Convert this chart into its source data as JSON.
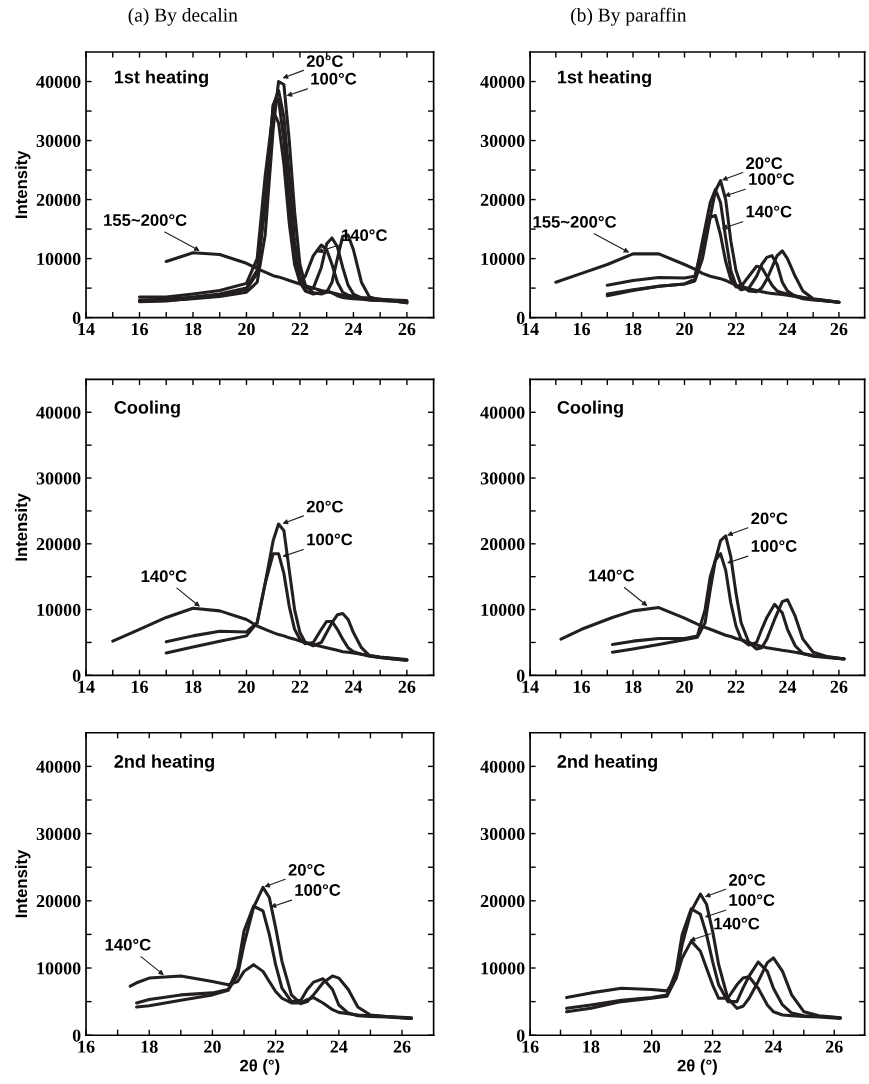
{
  "chart_data": [
    {
      "type": "line",
      "title": "(a) By decalin",
      "ylabel": "Intensity",
      "x": [
        16,
        17,
        18,
        19,
        20,
        20.4,
        20.7,
        21,
        21.2,
        21.4,
        21.6,
        21.8,
        22,
        22.2,
        22.5,
        22.8,
        23,
        23.2,
        23.4,
        23.6,
        23.8,
        24,
        24.3,
        24.6,
        25,
        25.5,
        26
      ],
      "series": [
        {
          "color": "#231f20",
          "values": [
            2800,
            2900,
            3200,
            3600,
            4300,
            6000,
            14000,
            32000,
            40000,
            39500,
            30000,
            18000,
            9000,
            5500,
            4200,
            4000,
            4300,
            6000,
            10000,
            13800,
            14000,
            11500,
            6000,
            3500,
            3000,
            2800,
            2500
          ]
        },
        {
          "color": "#231f20",
          "values": [
            3000,
            3100,
            3500,
            4000,
            5000,
            8000,
            20000,
            36000,
            38500,
            34000,
            24000,
            13000,
            7000,
            5000,
            5000,
            8500,
            12500,
            13500,
            12000,
            8500,
            5500,
            4000,
            3300,
            3000,
            2900,
            2800,
            2700
          ]
        },
        {
          "color": "#231f20",
          "values": [
            2700,
            2800,
            3300,
            3800,
            4800,
            7500,
            19000,
            36000,
            37000,
            30000,
            19000,
            10000,
            6000,
            4500,
            4000,
            4300,
            4500,
            4200,
            3700,
            3400,
            3300,
            3200,
            3100,
            3000,
            2900,
            2800,
            2500
          ]
        },
        {
          "color": "#231f20",
          "values": [
            3500,
            3500,
            4000,
            4600,
            5800,
            10000,
            24000,
            35000,
            33000,
            26000,
            16000,
            9000,
            6000,
            7000,
            10500,
            12300,
            11500,
            9000,
            6000,
            4300,
            3800,
            3500,
            3300,
            3200,
            3100,
            3000,
            2900
          ]
        },
        {
          "color": "#231f20",
          "values": [
            null,
            9500,
            11000,
            10700,
            9200,
            8300,
            7700,
            7100,
            6900,
            6600,
            6300,
            6000,
            5700,
            5400,
            5000,
            4600,
            4400,
            4200,
            4000,
            3800,
            3700,
            3600,
            3400,
            3300,
            3100,
            2900,
            2700
          ]
        }
      ],
      "xlim": [
        14,
        27
      ],
      "ylim": [
        0,
        45000
      ],
      "xticks": [
        14,
        {
          "value": 15,
          "label": null
        },
        16,
        {
          "value": 17,
          "label": null
        },
        18,
        {
          "value": 19,
          "label": null
        },
        20,
        {
          "value": 21,
          "label": null
        },
        22,
        {
          "value": 23,
          "label": null
        },
        24,
        {
          "value": 25,
          "label": null
        },
        26
      ],
      "yticks": [
        0,
        {
          "value": 5000,
          "label": null
        },
        10000,
        {
          "value": 15000,
          "label": null
        },
        20000,
        {
          "value": 25000,
          "label": null
        },
        30000,
        {
          "value": 35000,
          "label": null
        },
        40000
      ],
      "annotations": [
        "1st heating",
        {
          "text": "20°C",
          "x": 21.3,
          "y": 40500
        },
        {
          "text": "100°C",
          "x": 21.45,
          "y": 37500
        },
        {
          "text": "140°C",
          "x": 22.6,
          "y": 11000
        },
        {
          "text": "155~200°C",
          "x": 18.3,
          "y": 11200
        }
      ]
    },
    {
      "type": "line",
      "title": "(b) By paraffin",
      "x": [
        15,
        16,
        17,
        18,
        19,
        20,
        20.4,
        20.7,
        21,
        21.2,
        21.4,
        21.6,
        21.8,
        22,
        22.2,
        22.5,
        22.8,
        23,
        23.2,
        23.4,
        23.6,
        23.8,
        24,
        24.3,
        24.6,
        25,
        25.5,
        26
      ],
      "series": [
        {
          "color": "#231f20",
          "values": [
            null,
            null,
            4000,
            4700,
            5300,
            5700,
            6200,
            10000,
            17000,
            21500,
            23200,
            20000,
            13000,
            8000,
            5500,
            4500,
            4400,
            5000,
            6500,
            8500,
            10500,
            11300,
            10000,
            7000,
            4500,
            3200,
            2900,
            2600
          ]
        },
        {
          "color": "#231f20",
          "values": [
            null,
            null,
            3700,
            4600,
            5300,
            5700,
            6500,
            13000,
            19500,
            21700,
            19500,
            13500,
            8000,
            5500,
            4700,
            5000,
            7000,
            9000,
            10200,
            10500,
            9000,
            6000,
            4500,
            3600,
            3200,
            3000,
            2800,
            2600
          ]
        },
        {
          "color": "#231f20",
          "values": [
            null,
            null,
            5500,
            6300,
            6800,
            6700,
            7000,
            12000,
            17000,
            17300,
            14000,
            9500,
            6500,
            5200,
            5300,
            7000,
            8700,
            8500,
            7000,
            5500,
            4500,
            4200,
            4000,
            3700,
            3400,
            3100,
            2800,
            2600
          ]
        },
        {
          "color": "#231f20",
          "values": [
            6000,
            7500,
            9000,
            10800,
            10800,
            9000,
            8200,
            7500,
            7000,
            6800,
            6600,
            6300,
            5900,
            5500,
            5300,
            4900,
            4600,
            4400,
            4200,
            4100,
            4000,
            3900,
            3800,
            3600,
            3400,
            3100,
            2900,
            2600
          ]
        }
      ],
      "xlim": [
        14,
        27
      ],
      "ylim": [
        0,
        45000
      ],
      "xticks": [
        14,
        {
          "value": 15,
          "label": null
        },
        16,
        {
          "value": 17,
          "label": null
        },
        18,
        {
          "value": 19,
          "label": null
        },
        20,
        {
          "value": 21,
          "label": null
        },
        22,
        {
          "value": 23,
          "label": null
        },
        24,
        {
          "value": 25,
          "label": null
        },
        26
      ],
      "yticks": [
        0,
        {
          "value": 5000,
          "label": null
        },
        10000,
        {
          "value": 15000,
          "label": null
        },
        20000,
        {
          "value": 25000,
          "label": null
        },
        30000,
        {
          "value": 35000,
          "label": null
        },
        40000
      ],
      "annotations": [
        "1st heating",
        {
          "text": "20°C",
          "x": 21.4,
          "y": 23200
        },
        {
          "text": "100°C",
          "x": 21.5,
          "y": 20500
        },
        {
          "text": "140°C",
          "x": 21.4,
          "y": 15000
        },
        {
          "text": "155~200°C",
          "x": 17.9,
          "y": 10900
        }
      ]
    },
    {
      "type": "line",
      "ylabel": "Intensity",
      "x": [
        15,
        16,
        17,
        18,
        19,
        20,
        20.4,
        20.7,
        21,
        21.2,
        21.4,
        21.6,
        21.8,
        22,
        22.2,
        22.5,
        22.8,
        23,
        23.2,
        23.4,
        23.6,
        23.8,
        24,
        24.3,
        24.6,
        25,
        25.5,
        26
      ],
      "series": [
        {
          "color": "#231f20",
          "values": [
            null,
            null,
            3400,
            4300,
            5200,
            6000,
            8000,
            14000,
            20500,
            23000,
            22000,
            16000,
            10000,
            6500,
            5000,
            4500,
            5000,
            6500,
            8000,
            9200,
            9400,
            8500,
            6500,
            4200,
            3000,
            2700,
            2500,
            2300
          ]
        },
        {
          "color": "#231f20",
          "values": [
            null,
            null,
            5100,
            6000,
            6700,
            6600,
            8000,
            14000,
            18500,
            18500,
            15500,
            10500,
            7000,
            5500,
            4800,
            5000,
            7000,
            8200,
            8200,
            7000,
            5500,
            4200,
            3600,
            3200,
            2900,
            2700,
            2500,
            2300
          ]
        },
        {
          "color": "#231f20",
          "values": [
            5200,
            7000,
            8800,
            10200,
            9800,
            8500,
            7500,
            7000,
            6500,
            6200,
            6000,
            5700,
            5500,
            5200,
            5000,
            4700,
            4400,
            4200,
            4000,
            3800,
            3600,
            3500,
            3400,
            3200,
            3000,
            2800,
            2600,
            2400
          ]
        }
      ],
      "xlim": [
        14,
        27
      ],
      "ylim": [
        0,
        45000
      ],
      "xticks": [
        14,
        {
          "value": 15,
          "label": null
        },
        16,
        {
          "value": 17,
          "label": null
        },
        18,
        {
          "value": 19,
          "label": null
        },
        20,
        {
          "value": 21,
          "label": null
        },
        22,
        {
          "value": 23,
          "label": null
        },
        24,
        {
          "value": 25,
          "label": null
        },
        26
      ],
      "yticks": [
        0,
        {
          "value": 5000,
          "label": null
        },
        10000,
        {
          "value": 15000,
          "label": null
        },
        20000,
        {
          "value": 25000,
          "label": null
        },
        30000,
        {
          "value": 35000,
          "label": null
        },
        40000
      ],
      "annotations": [
        "Cooling",
        {
          "text": "20°C",
          "x": 21.3,
          "y": 23000
        },
        {
          "text": "100°C",
          "x": 21.3,
          "y": 18000
        },
        {
          "text": "140°C",
          "x": 18.3,
          "y": 10300
        }
      ]
    },
    {
      "type": "line",
      "x": [
        15.2,
        16,
        17.2,
        18,
        19,
        20,
        20.5,
        20.8,
        21,
        21.2,
        21.4,
        21.6,
        21.8,
        22,
        22.2,
        22.5,
        22.8,
        23,
        23.2,
        23.5,
        23.8,
        24,
        24.3,
        24.6,
        25,
        25.5,
        26.2
      ],
      "series": [
        {
          "color": "#231f20",
          "values": [
            null,
            null,
            3500,
            4000,
            4700,
            5400,
            5800,
            8000,
            13000,
            17500,
            20500,
            21200,
            18000,
            12500,
            8000,
            5000,
            4000,
            4200,
            5500,
            8500,
            11200,
            11500,
            9000,
            5500,
            3500,
            2900,
            2500
          ]
        },
        {
          "color": "#231f20",
          "values": [
            null,
            null,
            4700,
            5200,
            5600,
            5600,
            6000,
            10000,
            15000,
            17500,
            18500,
            16000,
            11000,
            7500,
            5500,
            4600,
            5000,
            7000,
            8800,
            10800,
            9500,
            7000,
            4500,
            3300,
            2900,
            2700,
            2500
          ]
        },
        {
          "color": "#231f20",
          "values": [
            5500,
            7000,
            8800,
            9800,
            10300,
            8700,
            7800,
            7300,
            7000,
            6700,
            6400,
            6100,
            5900,
            5600,
            5400,
            5000,
            4600,
            4400,
            4200,
            4000,
            3800,
            3700,
            3500,
            3300,
            3000,
            2800,
            2500
          ]
        }
      ],
      "xlim": [
        14,
        27
      ],
      "ylim": [
        0,
        45000
      ],
      "xticks": [
        14,
        {
          "value": 15,
          "label": null
        },
        16,
        {
          "value": 17,
          "label": null
        },
        18,
        {
          "value": 19,
          "label": null
        },
        20,
        {
          "value": 21,
          "label": null
        },
        22,
        {
          "value": 23,
          "label": null
        },
        24,
        {
          "value": 25,
          "label": null
        },
        26
      ],
      "yticks": [
        0,
        {
          "value": 5000,
          "label": null
        },
        10000,
        {
          "value": 15000,
          "label": null
        },
        20000,
        {
          "value": 25000,
          "label": null
        },
        30000,
        {
          "value": 35000,
          "label": null
        },
        40000
      ],
      "annotations": [
        "Cooling",
        {
          "text": "20°C",
          "x": 21.6,
          "y": 21200
        },
        {
          "text": "100°C",
          "x": 21.6,
          "y": 17000
        },
        {
          "text": "140°C",
          "x": 18.6,
          "y": 10400
        }
      ]
    },
    {
      "type": "line",
      "ylabel": "Intensity",
      "xlabel": "2θ (°)",
      "x": [
        17.4,
        17.6,
        18,
        19,
        20,
        20.5,
        20.8,
        21,
        21.3,
        21.6,
        21.8,
        22,
        22.2,
        22.5,
        22.8,
        23,
        23.2,
        23.5,
        23.8,
        24,
        24.3,
        24.6,
        25,
        25.5,
        26.3
      ],
      "series": [
        {
          "color": "#231f20",
          "values": [
            null,
            4200,
            4400,
            5200,
            6000,
            6700,
            9000,
            13500,
            19000,
            22000,
            20500,
            16000,
            11000,
            6000,
            4700,
            5000,
            6000,
            7800,
            8800,
            8500,
            6800,
            4200,
            3000,
            2800,
            2500
          ]
        },
        {
          "color": "#231f20",
          "values": [
            null,
            4800,
            5300,
            6000,
            6300,
            6800,
            10000,
            15500,
            19200,
            18500,
            15000,
            10500,
            7000,
            5000,
            5200,
            6800,
            7900,
            8400,
            6800,
            4500,
            3300,
            2900,
            2800,
            2700,
            2500
          ]
        },
        {
          "color": "#231f20",
          "values": [
            7300,
            7800,
            8500,
            8800,
            8000,
            7500,
            8000,
            9500,
            10500,
            9500,
            8000,
            6500,
            5500,
            4800,
            4800,
            5300,
            5600,
            4800,
            3800,
            3400,
            3200,
            3000,
            2900,
            2800,
            2600
          ]
        }
      ],
      "xlim": [
        16,
        27
      ],
      "ylim": [
        0,
        45000
      ],
      "xticks": [
        16,
        {
          "value": 17,
          "label": null
        },
        18,
        {
          "value": 19,
          "label": null
        },
        20,
        {
          "value": 21,
          "label": null
        },
        22,
        {
          "value": 23,
          "label": null
        },
        24,
        {
          "value": 25,
          "label": null
        },
        26
      ],
      "yticks": [
        0,
        {
          "value": 5000,
          "label": null
        },
        10000,
        {
          "value": 15000,
          "label": null
        },
        20000,
        {
          "value": 25000,
          "label": null
        },
        30000,
        {
          "value": 35000,
          "label": null
        },
        40000
      ],
      "annotations": [
        "2nd heating",
        {
          "text": "20°C",
          "x": 21.6,
          "y": 22000
        },
        {
          "text": "100°C",
          "x": 21.8,
          "y": 19000
        },
        {
          "text": "140°C",
          "x": 18.5,
          "y": 8800
        }
      ]
    },
    {
      "type": "line",
      "xlabel": "2θ (°)",
      "x": [
        17.2,
        18,
        19,
        20,
        20.5,
        20.8,
        21,
        21.3,
        21.6,
        21.8,
        22,
        22.2,
        22.5,
        22.8,
        23,
        23.2,
        23.5,
        23.8,
        24,
        24.3,
        24.6,
        25,
        25.5,
        26.2
      ],
      "series": [
        {
          "color": "#231f20",
          "values": [
            3500,
            4000,
            5000,
            5500,
            5800,
            8500,
            13500,
            18500,
            21000,
            19500,
            15500,
            10500,
            5500,
            4000,
            4300,
            5500,
            8000,
            10800,
            11500,
            9500,
            6000,
            3500,
            2900,
            2600
          ]
        },
        {
          "color": "#231f20",
          "values": [
            4000,
            4500,
            5200,
            5600,
            6000,
            9500,
            15000,
            18800,
            18000,
            15000,
            11000,
            7500,
            5000,
            5000,
            7000,
            8800,
            10900,
            9500,
            7000,
            4500,
            3300,
            2900,
            2800,
            2600
          ]
        },
        {
          "color": "#231f20",
          "values": [
            5600,
            6300,
            7000,
            6800,
            6600,
            8500,
            11500,
            14000,
            12500,
            10000,
            7500,
            5500,
            5500,
            7500,
            8500,
            8700,
            7000,
            4500,
            3500,
            3000,
            2900,
            2800,
            2700,
            2500
          ]
        }
      ],
      "xlim": [
        16,
        27
      ],
      "ylim": [
        0,
        45000
      ],
      "xticks": [
        16,
        {
          "value": 17,
          "label": null
        },
        18,
        {
          "value": 19,
          "label": null
        },
        20,
        {
          "value": 21,
          "label": null
        },
        22,
        {
          "value": 23,
          "label": null
        },
        24,
        {
          "value": 25,
          "label": null
        },
        26
      ],
      "yticks": [
        0,
        {
          "value": 5000,
          "label": null
        },
        10000,
        {
          "value": 15000,
          "label": null
        },
        20000,
        {
          "value": 25000,
          "label": null
        },
        30000,
        {
          "value": 35000,
          "label": null
        },
        40000
      ],
      "annotations": [
        "2nd heating",
        {
          "text": "20°C",
          "x": 21.7,
          "y": 20500
        },
        {
          "text": "100°C",
          "x": 21.7,
          "y": 17500
        },
        {
          "text": "140°C",
          "x": 21.2,
          "y": 14000
        }
      ]
    }
  ]
}
